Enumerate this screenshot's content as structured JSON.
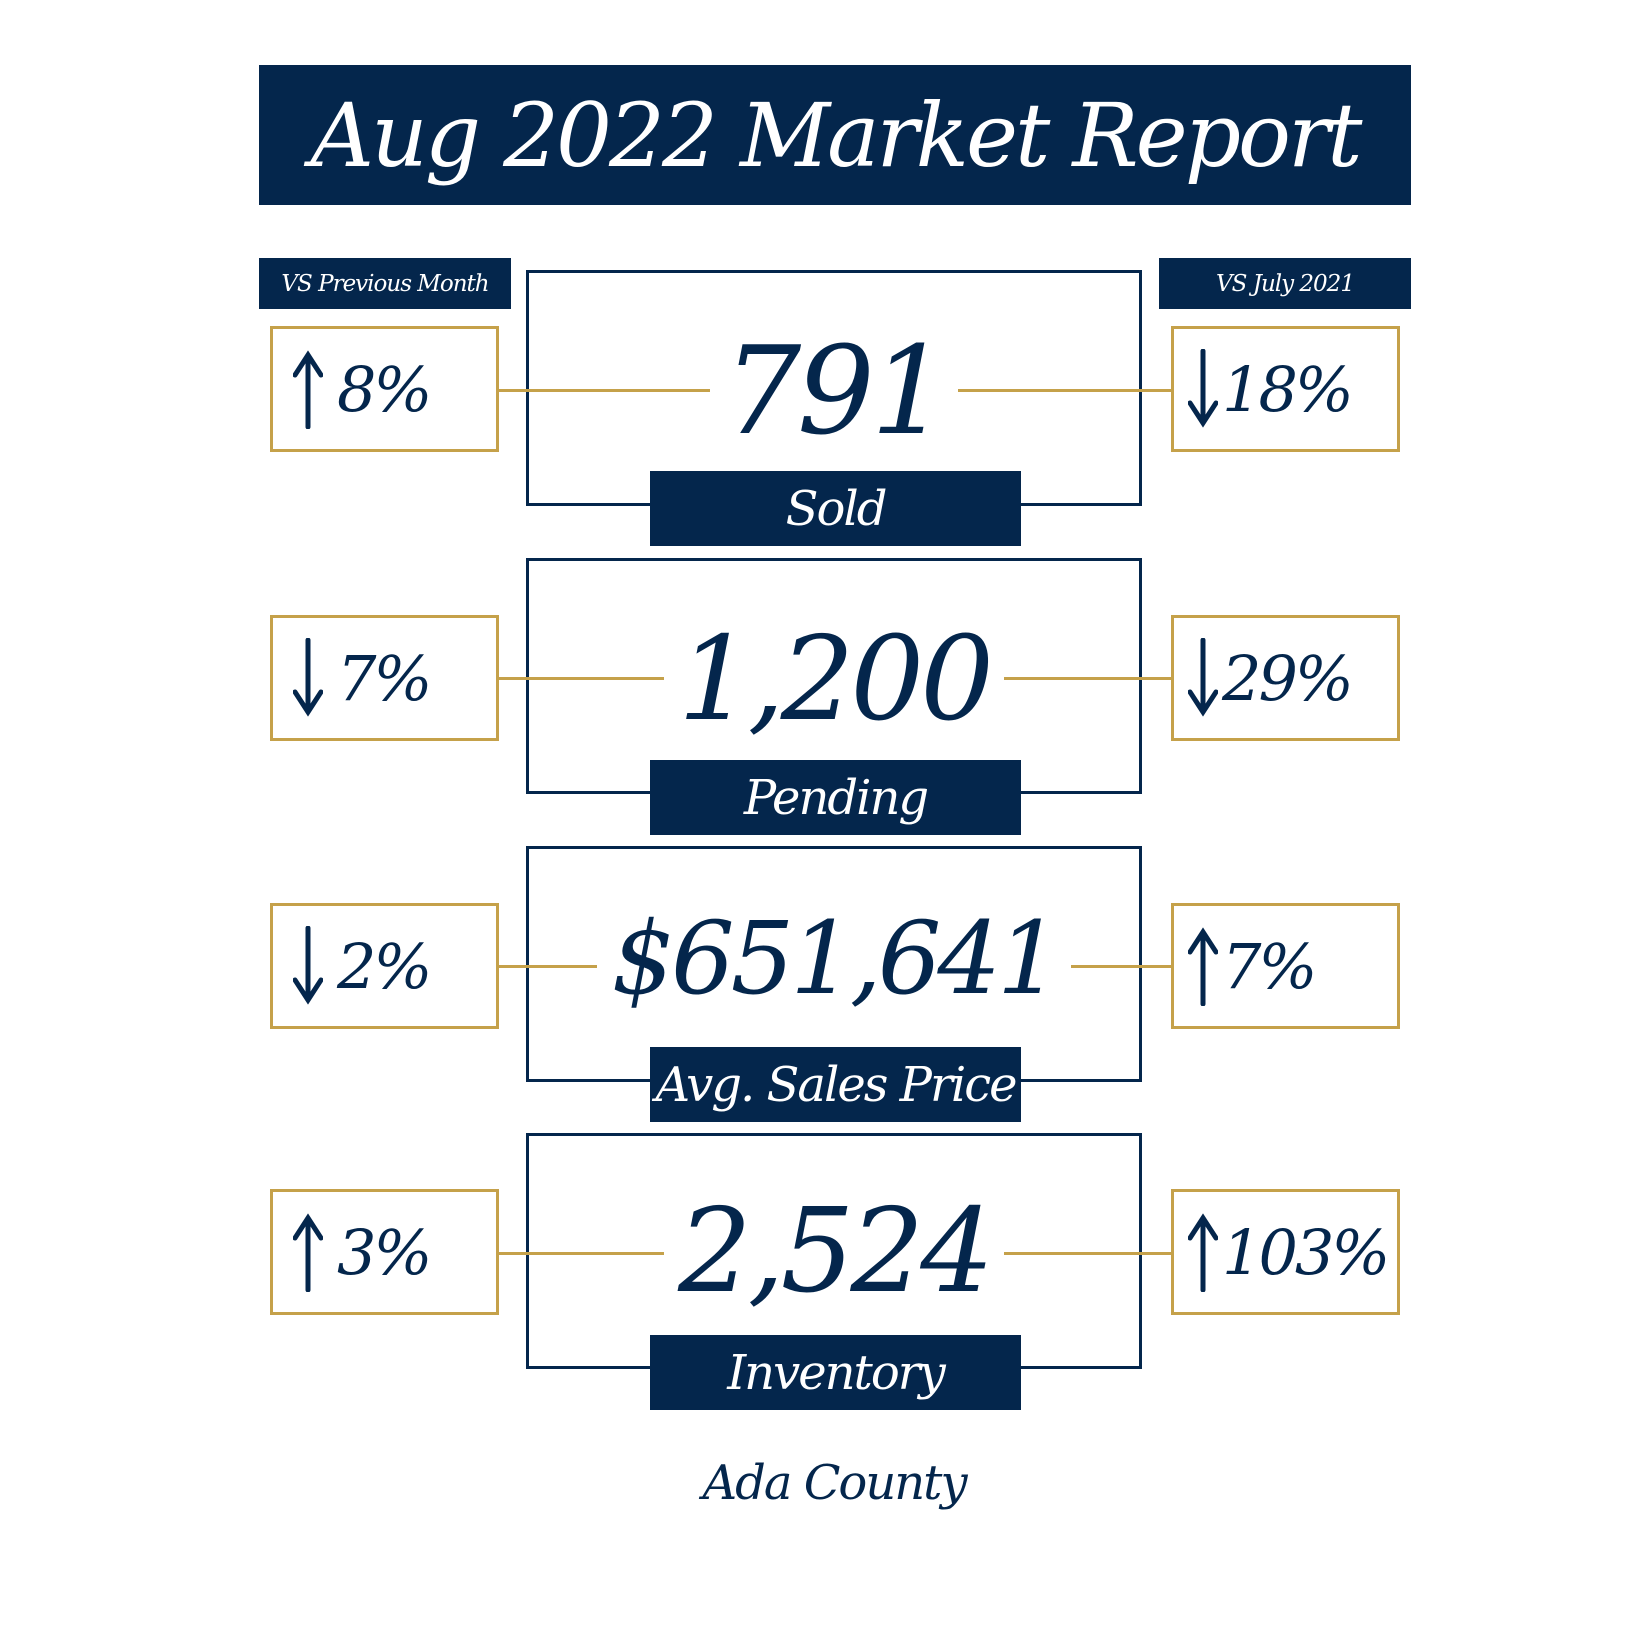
{
  "title": "Aug 2022 Market Report",
  "headers": {
    "left": "VS Previous Month",
    "right": "VS  July 2021"
  },
  "colors": {
    "navy": "#04264c",
    "gold": "#c5a14a"
  },
  "metrics": [
    {
      "value": "791",
      "label": "Sold",
      "vs_previous_month": {
        "direction": "up",
        "icon": "arrow-up-icon",
        "text": "8%"
      },
      "vs_last_year": {
        "direction": "down",
        "icon": "arrow-down-icon",
        "text": "18%"
      }
    },
    {
      "value": "1,200",
      "label": "Pending",
      "vs_previous_month": {
        "direction": "down",
        "icon": "arrow-down-icon",
        "text": "7%"
      },
      "vs_last_year": {
        "direction": "down",
        "icon": "arrow-down-icon",
        "text": "29%"
      }
    },
    {
      "value": "$651,641",
      "label": "Avg. Sales Price",
      "vs_previous_month": {
        "direction": "down",
        "icon": "arrow-down-icon",
        "text": "2%"
      },
      "vs_last_year": {
        "direction": "up",
        "icon": "arrow-up-icon",
        "text": "7%"
      }
    },
    {
      "value": "2,524",
      "label": "Inventory",
      "vs_previous_month": {
        "direction": "up",
        "icon": "arrow-up-icon",
        "text": "3%"
      },
      "vs_last_year": {
        "direction": "up",
        "icon": "arrow-up-icon",
        "text": "103%"
      }
    }
  ],
  "footer": "Ada County"
}
